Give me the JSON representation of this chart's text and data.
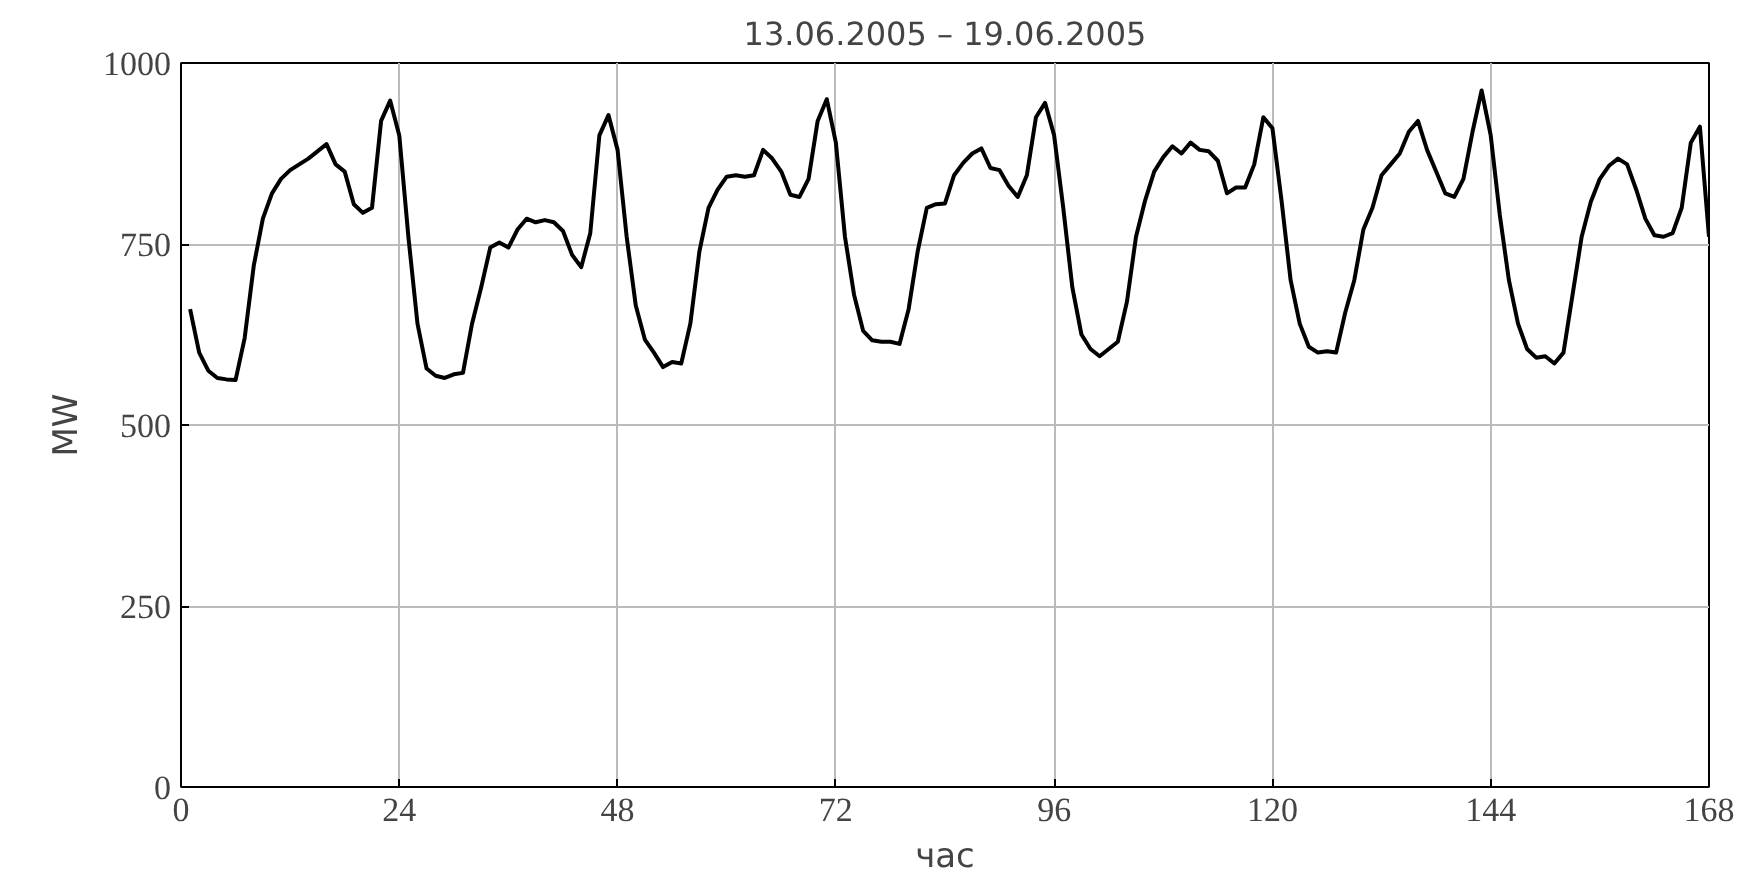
{
  "chart_data": {
    "type": "line",
    "title": "13.06.2005 – 19.06.2005",
    "xlabel": "час",
    "ylabel": "MW",
    "xlim": [
      0,
      168
    ],
    "ylim": [
      0,
      1000
    ],
    "xticks": [
      0,
      24,
      48,
      72,
      96,
      120,
      144,
      168
    ],
    "yticks": [
      0,
      250,
      500,
      750,
      1000
    ],
    "grid": true,
    "series": [
      {
        "color": "#000000",
        "x": [
          1,
          2,
          3,
          4,
          5,
          6,
          7,
          8,
          9,
          10,
          11,
          12,
          13,
          14,
          15,
          16,
          17,
          18,
          19,
          20,
          21,
          22,
          23,
          24,
          25,
          26,
          27,
          28,
          29,
          30,
          31,
          32,
          33,
          34,
          35,
          36,
          37,
          38,
          39,
          40,
          41,
          42,
          43,
          44,
          45,
          46,
          47,
          48,
          49,
          50,
          51,
          52,
          53,
          54,
          55,
          56,
          57,
          58,
          59,
          60,
          61,
          62,
          63,
          64,
          65,
          66,
          67,
          68,
          69,
          70,
          71,
          72,
          73,
          74,
          75,
          76,
          77,
          78,
          79,
          80,
          81,
          82,
          83,
          84,
          85,
          86,
          87,
          88,
          89,
          90,
          91,
          92,
          93,
          94,
          95,
          96,
          97,
          98,
          99,
          100,
          101,
          102,
          103,
          104,
          105,
          106,
          107,
          108,
          109,
          110,
          111,
          112,
          113,
          114,
          115,
          116,
          117,
          118,
          119,
          120,
          121,
          122,
          123,
          124,
          125,
          126,
          127,
          128,
          129,
          130,
          131,
          132,
          133,
          134,
          135,
          136,
          137,
          138,
          139,
          140,
          141,
          142,
          143,
          144,
          145,
          146,
          147,
          148,
          149,
          150,
          151,
          152,
          153,
          154,
          155,
          156,
          157,
          158,
          159,
          160,
          161,
          162,
          163,
          164,
          165,
          166,
          167,
          168
        ],
        "values": [
          660,
          600,
          575,
          565,
          563,
          562,
          620,
          720,
          785,
          820,
          840,
          852,
          860,
          868,
          878,
          888,
          860,
          850,
          805,
          793,
          800,
          920,
          948,
          900,
          760,
          640,
          578,
          568,
          565,
          570,
          572,
          640,
          690,
          745,
          752,
          745,
          770,
          785,
          780,
          783,
          780,
          768,
          735,
          718,
          765,
          900,
          928,
          880,
          760,
          665,
          618,
          600,
          580,
          587,
          585,
          640,
          740,
          800,
          825,
          843,
          845,
          843,
          845,
          880,
          868,
          850,
          818,
          815,
          840,
          920,
          950,
          890,
          760,
          680,
          630,
          617,
          615,
          615,
          612,
          660,
          740,
          800,
          805,
          806,
          845,
          862,
          875,
          882,
          855,
          852,
          830,
          815,
          845,
          925,
          945,
          900,
          800,
          690,
          625,
          605,
          595,
          605,
          615,
          670,
          760,
          810,
          850,
          870,
          885,
          875,
          890,
          880,
          878,
          865,
          820,
          828,
          828,
          860,
          925,
          910,
          810,
          700,
          640,
          608,
          600,
          602,
          600,
          655,
          700,
          770,
          800,
          845,
          860,
          875,
          905,
          920,
          880,
          850,
          820,
          815,
          840,
          905,
          962,
          900,
          790,
          700,
          640,
          605,
          593,
          595,
          585,
          600,
          680,
          760,
          808,
          840,
          858,
          868,
          860,
          825,
          785,
          762,
          760,
          765,
          800,
          890,
          912,
          760
        ]
      }
    ]
  }
}
